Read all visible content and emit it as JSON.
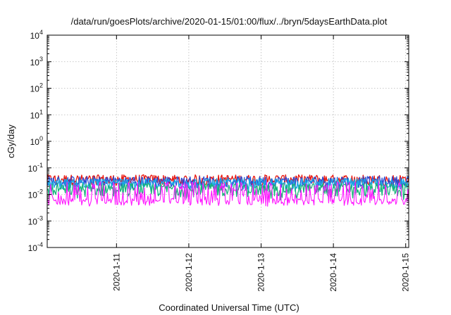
{
  "chart_data": {
    "type": "line",
    "title": "/data/run/goesPlots/archive/2020-01-15/01:00/flux/../bryn/5daysEarthData.plot",
    "xlabel": "Coordinated Universal Time (UTC)",
    "ylabel": "cGy/day",
    "y_scale": "log",
    "ylim": [
      0.0001,
      10000
    ],
    "xlim": [
      "2020-01-10 01:00",
      "2020-01-15 01:00"
    ],
    "y_ticks": [
      {
        "value": 0.0001,
        "base": "10",
        "exp": "-4"
      },
      {
        "value": 0.001,
        "base": "10",
        "exp": "-3"
      },
      {
        "value": 0.01,
        "base": "10",
        "exp": "-2"
      },
      {
        "value": 0.1,
        "base": "10",
        "exp": "-1"
      },
      {
        "value": 1,
        "base": "10",
        "exp": "0"
      },
      {
        "value": 10,
        "base": "10",
        "exp": "1"
      },
      {
        "value": 100,
        "base": "10",
        "exp": "2"
      },
      {
        "value": 1000,
        "base": "10",
        "exp": "3"
      },
      {
        "value": 10000,
        "base": "10",
        "exp": "4"
      }
    ],
    "x_ticks": [
      {
        "value": "2020-01-11 00:00",
        "label": "2020-1-11"
      },
      {
        "value": "2020-01-12 00:00",
        "label": "2020-1-12"
      },
      {
        "value": "2020-01-13 00:00",
        "label": "2020-1-13"
      },
      {
        "value": "2020-01-14 00:00",
        "label": "2020-1-14"
      },
      {
        "value": "2020-01-15 00:00",
        "label": "2020-1-15"
      }
    ],
    "grid": true,
    "legend": "none",
    "series": [
      {
        "color": "#e8140c",
        "baseline": 0.032,
        "spread_low": 0.022,
        "spread_high": 0.055,
        "dip_low": 0.02
      },
      {
        "color": "#2b4bd6",
        "baseline": 0.028,
        "spread_low": 0.018,
        "spread_high": 0.048,
        "dip_low": 0.016
      },
      {
        "color": "#1aa9e6",
        "baseline": 0.024,
        "spread_low": 0.015,
        "spread_high": 0.04,
        "dip_low": 0.013
      },
      {
        "color": "#17b37a",
        "baseline": 0.016,
        "spread_low": 0.008,
        "spread_high": 0.026,
        "dip_low": 0.006
      },
      {
        "color": "#ff14ff",
        "baseline": 0.006,
        "spread_low": 0.0035,
        "spread_high": 0.03,
        "dip_low": 0.0038
      }
    ]
  }
}
